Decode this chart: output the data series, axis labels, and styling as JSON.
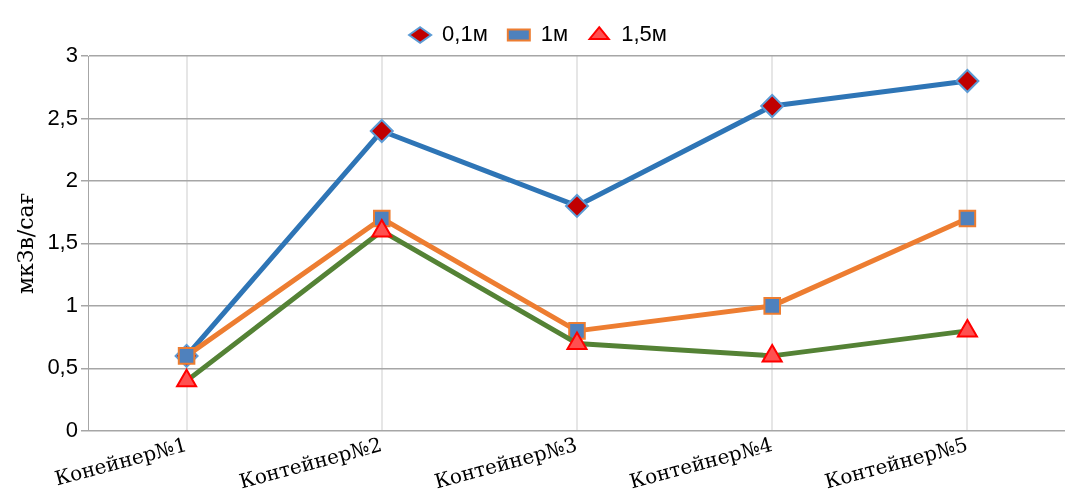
{
  "chart_data": {
    "type": "line",
    "ylabel": "мкЗв/сағ",
    "categories": [
      "Конейнер№1",
      "Контейнер№2",
      "Контейнер№3",
      "Контейнер№4",
      "Контейнер№5"
    ],
    "series": [
      {
        "name": "0,1м",
        "color": "#2e75b6",
        "marker": "diamond",
        "values": [
          0.6,
          2.4,
          1.8,
          2.6,
          2.8
        ]
      },
      {
        "name": "1м",
        "color": "#ed7d31",
        "marker": "square",
        "values": [
          0.6,
          1.7,
          0.8,
          1.0,
          1.7
        ]
      },
      {
        "name": "1,5м",
        "color": "#548235",
        "marker": "triangle",
        "values": [
          0.4,
          1.6,
          0.7,
          0.6,
          0.8
        ]
      }
    ],
    "ylim": [
      0,
      3
    ],
    "yticks": [
      0,
      {
        "value": 0.5,
        "label": "0,5"
      },
      1,
      {
        "value": 1.5,
        "label": "1,5"
      },
      2,
      {
        "value": 2.5,
        "label": "2,5"
      },
      3
    ],
    "grid": true,
    "legend": "top",
    "line_style": "solid"
  }
}
